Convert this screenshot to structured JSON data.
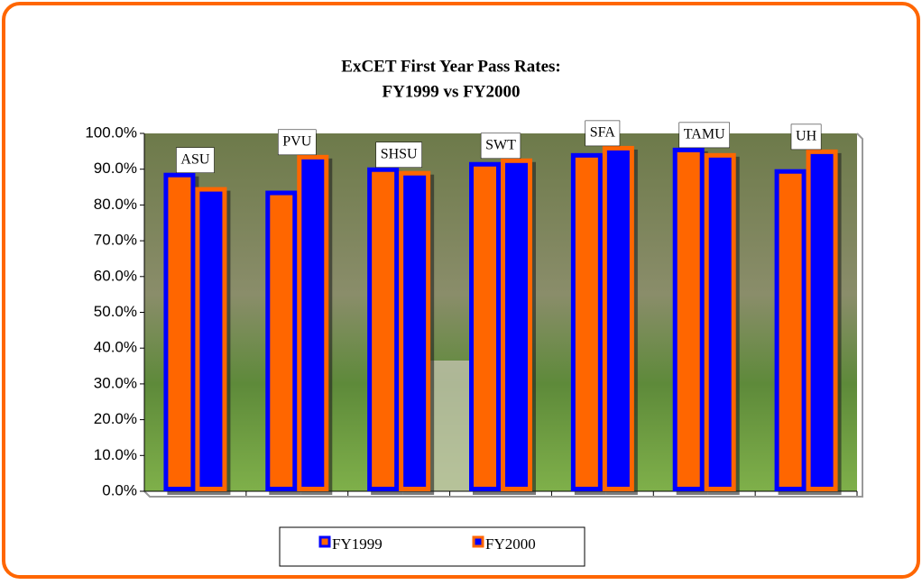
{
  "chart_data": {
    "type": "bar",
    "title": "ExCET First Year Pass Rates:",
    "subtitle": "FY1999 vs FY2000",
    "categories": [
      "ASU",
      "PVU",
      "SHSU",
      "SWT",
      "SFA",
      "TAMU",
      "UH"
    ],
    "series": [
      {
        "name": "FY1999",
        "color": "#0000ff",
        "fill": "#ff6600",
        "values": [
          89,
          84,
          90.5,
          92,
          94.5,
          96,
          90
        ]
      },
      {
        "name": "FY2000",
        "color": "#ff6600",
        "fill": "#0000ff",
        "values": [
          85,
          94,
          89.5,
          93,
          96.5,
          94.5,
          95.5
        ]
      }
    ],
    "ylim": [
      0,
      100
    ],
    "yticks": [
      {
        "value": 0,
        "label": "0.0%"
      },
      {
        "value": 10,
        "label": "10.0%"
      },
      {
        "value": 20,
        "label": "20.0%"
      },
      {
        "value": 30,
        "label": "30.0%"
      },
      {
        "value": 40,
        "label": "40.0%"
      },
      {
        "value": 50,
        "label": "50.0%"
      },
      {
        "value": 60,
        "label": "60.0%"
      },
      {
        "value": 70,
        "label": "70.0%"
      },
      {
        "value": 80,
        "label": "80.0%"
      },
      {
        "value": 90,
        "label": "90.0%"
      },
      {
        "value": 100,
        "label": "100.0%"
      }
    ],
    "legend": "bottom"
  }
}
